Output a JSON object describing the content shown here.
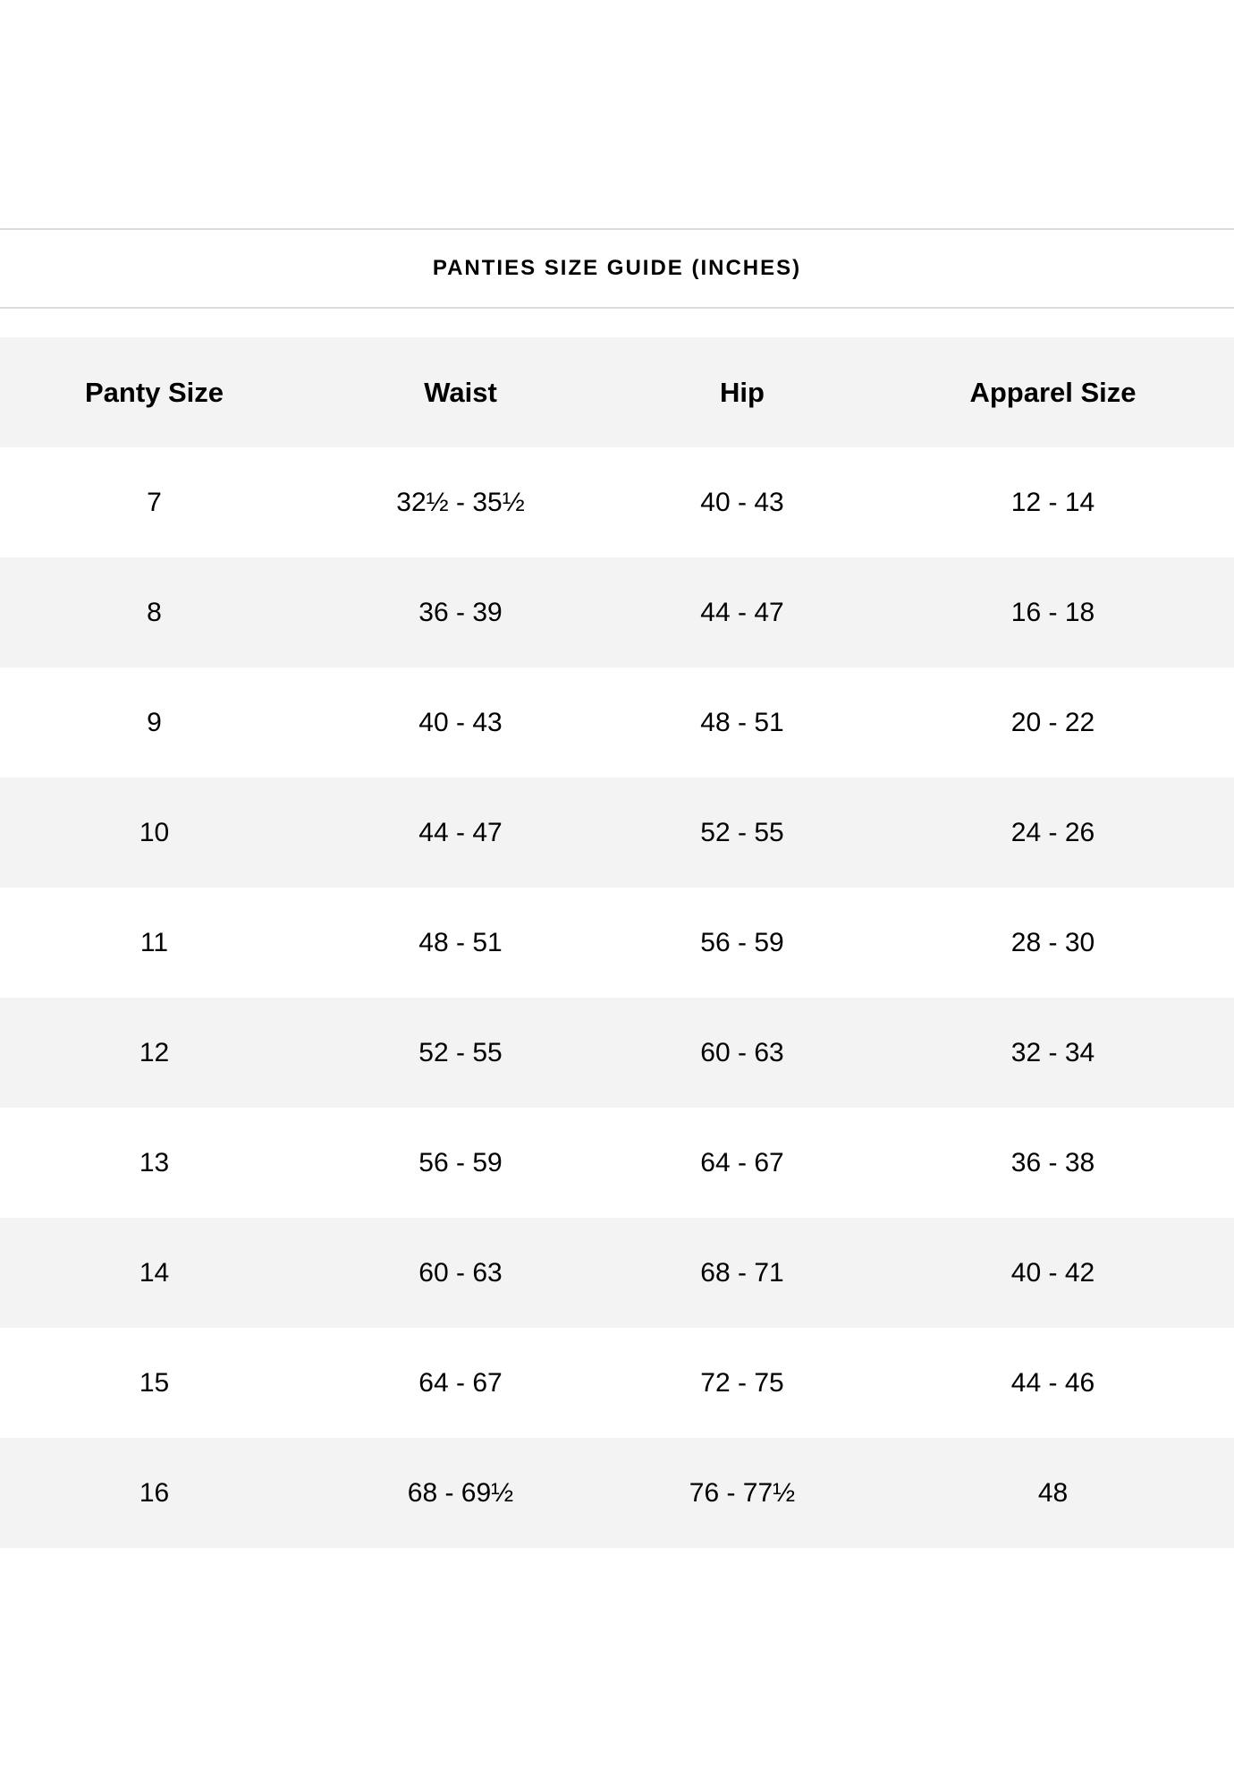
{
  "title": "PANTIES SIZE GUIDE (INCHES)",
  "table": {
    "headers": [
      "Panty Size",
      "Waist",
      "Hip",
      "Apparel Size"
    ],
    "rows": [
      [
        "7",
        "32½ - 35½",
        "40 - 43",
        "12 - 14"
      ],
      [
        "8",
        "36 - 39",
        "44 - 47",
        "16 - 18"
      ],
      [
        "9",
        "40 - 43",
        "48 - 51",
        "20 - 22"
      ],
      [
        "10",
        "44 - 47",
        "52 - 55",
        "24 - 26"
      ],
      [
        "11",
        "48 - 51",
        "56 - 59",
        "28 - 30"
      ],
      [
        "12",
        "52 - 55",
        "60 - 63",
        "32 - 34"
      ],
      [
        "13",
        "56 - 59",
        "64 - 67",
        "36 - 38"
      ],
      [
        "14",
        "60 - 63",
        "68 - 71",
        "40 - 42"
      ],
      [
        "15",
        "64 - 67",
        "72 - 75",
        "44 - 46"
      ],
      [
        "16",
        "68 - 69½",
        "76 - 77½",
        "48"
      ]
    ]
  },
  "colors": {
    "header_bg": "#f3f3f3",
    "stripe_bg": "#f3f3f3",
    "divider": "#dcdcdc"
  }
}
